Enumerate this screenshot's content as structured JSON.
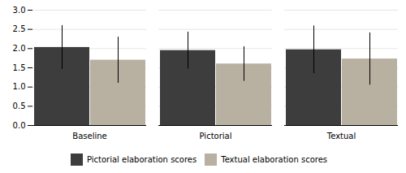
{
  "chart_data": {
    "type": "bar",
    "categories": [
      "Baseline",
      "Pictorial",
      "Textual"
    ],
    "series": [
      {
        "name": "Pictorial elaboration scores",
        "color": "#3d3d3d",
        "values": [
          2.03,
          1.95,
          1.97
        ],
        "errors": [
          0.57,
          0.48,
          0.62
        ]
      },
      {
        "name": "Textual elaboration scores",
        "color": "#b8b0a0",
        "values": [
          1.7,
          1.6,
          1.73
        ],
        "errors": [
          0.6,
          0.45,
          0.68
        ]
      }
    ],
    "ylim": [
      0,
      3
    ],
    "yticks": [
      {
        "value": 0,
        "label": "0.0"
      },
      0.5,
      {
        "value": 1,
        "label": "1.0"
      },
      1.5,
      {
        "value": 2,
        "label": "2.0"
      },
      2.5,
      {
        "value": 3,
        "label": "3.0"
      }
    ],
    "grid": true,
    "legend": "bottom"
  }
}
